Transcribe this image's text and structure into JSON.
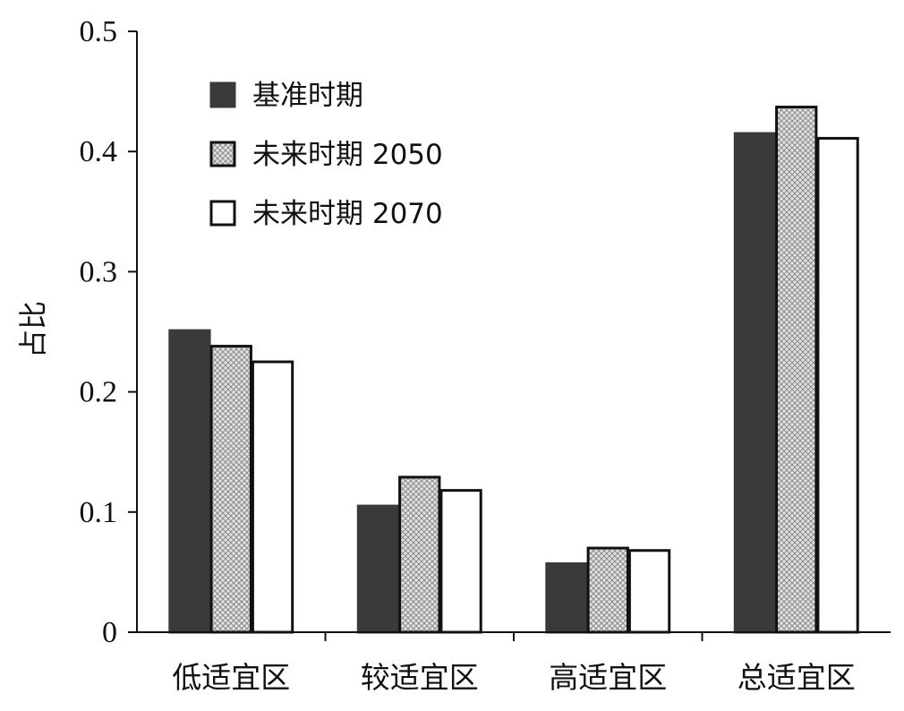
{
  "chart_data": {
    "type": "bar",
    "title": "",
    "xlabel": "",
    "ylabel": "占比",
    "ylim": [
      0,
      0.5
    ],
    "yticks": [
      0,
      0.1,
      0.2,
      0.3,
      0.4,
      0.5
    ],
    "ytick_labels": [
      "0",
      "0.1",
      "0.2",
      "0.3",
      "0.4",
      "0.5"
    ],
    "categories": [
      "低适宜区",
      "较适宜区",
      "高适宜区",
      "总适宜区"
    ],
    "series": [
      {
        "name": "基准时期",
        "values": [
          0.251,
          0.105,
          0.057,
          0.415
        ],
        "fill": "solid",
        "color": "#3a3a3a"
      },
      {
        "name": "未来时期 2050",
        "values": [
          0.238,
          0.129,
          0.07,
          0.437
        ],
        "fill": "crosshatch",
        "color": "#d2d2d2"
      },
      {
        "name": "未来时期 2070",
        "values": [
          0.225,
          0.118,
          0.068,
          0.411
        ],
        "fill": "empty",
        "color": "#ffffff"
      }
    ],
    "legend_position": "top-left",
    "grid": false
  }
}
